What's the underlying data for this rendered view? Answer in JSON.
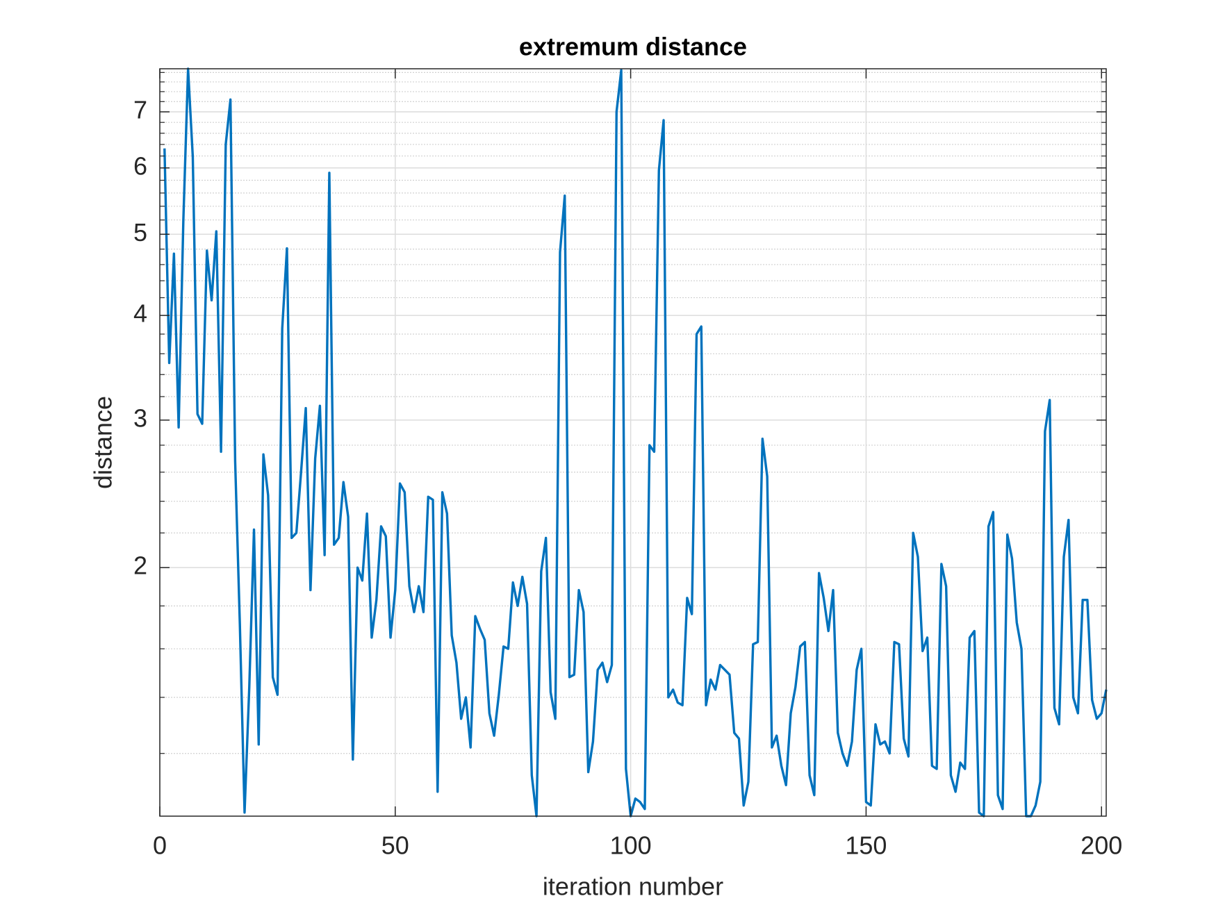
{
  "chart_data": {
    "type": "line",
    "title": "extremum distance",
    "x_label": "iteration number",
    "y_label": "distance",
    "yscale": "log",
    "grid": true,
    "minor_grid": true,
    "xlim": [
      0,
      201
    ],
    "xticks": [
      0,
      50,
      100,
      150,
      200
    ],
    "ylim": [
      1.01,
      7.88
    ],
    "yticks": [
      2,
      3,
      4,
      5,
      6,
      7
    ],
    "minor_yticks": [
      1.2,
      1.4,
      1.6,
      1.8,
      2.2,
      2.4,
      2.6,
      2.8,
      3.2,
      3.4,
      3.6,
      3.8,
      4.2,
      4.4,
      4.6,
      4.8,
      5.2,
      5.4,
      5.6,
      5.8,
      6.2,
      6.4,
      6.6,
      6.8,
      7.2,
      7.4,
      7.6,
      7.8
    ],
    "x": [
      1,
      2,
      3,
      4,
      5,
      6,
      7,
      8,
      9,
      10,
      11,
      12,
      13,
      14,
      15,
      16,
      17,
      18,
      19,
      20,
      21,
      22,
      23,
      24,
      25,
      26,
      27,
      28,
      29,
      30,
      31,
      32,
      33,
      34,
      35,
      36,
      37,
      38,
      39,
      40,
      41,
      42,
      43,
      44,
      45,
      46,
      47,
      48,
      49,
      50,
      51,
      52,
      53,
      54,
      55,
      56,
      57,
      58,
      59,
      60,
      61,
      62,
      63,
      64,
      65,
      66,
      67,
      68,
      69,
      70,
      71,
      72,
      73,
      74,
      75,
      76,
      77,
      78,
      79,
      80,
      81,
      82,
      83,
      84,
      85,
      86,
      87,
      88,
      89,
      90,
      91,
      92,
      93,
      94,
      95,
      96,
      97,
      98,
      99,
      100,
      101,
      102,
      103,
      104,
      105,
      106,
      107,
      108,
      109,
      110,
      111,
      112,
      113,
      114,
      115,
      116,
      117,
      118,
      119,
      120,
      121,
      122,
      123,
      124,
      125,
      126,
      127,
      128,
      129,
      130,
      131,
      132,
      133,
      134,
      135,
      136,
      137,
      138,
      139,
      140,
      141,
      142,
      143,
      144,
      145,
      146,
      147,
      148,
      149,
      150,
      151,
      152,
      153,
      154,
      155,
      156,
      157,
      158,
      159,
      160,
      161,
      162,
      163,
      164,
      165,
      166,
      167,
      168,
      169,
      170,
      171,
      172,
      173,
      174,
      175,
      176,
      177,
      178,
      179,
      180,
      181,
      182,
      183,
      184,
      185,
      186,
      187,
      188,
      189,
      190,
      191,
      192,
      193,
      194,
      195,
      196,
      197,
      198,
      199,
      200,
      201
    ],
    "series": [
      {
        "name": "distance",
        "color": "#0072bd",
        "values": [
          6.33,
          3.51,
          4.74,
          2.94,
          5.2,
          7.88,
          6.19,
          3.05,
          2.97,
          4.78,
          4.17,
          5.04,
          2.75,
          6.4,
          7.24,
          2.68,
          1.71,
          1.02,
          1.44,
          2.22,
          1.23,
          2.73,
          2.44,
          1.48,
          1.41,
          3.86,
          4.81,
          2.17,
          2.2,
          2.6,
          3.1,
          1.88,
          2.7,
          3.12,
          2.07,
          5.92,
          2.13,
          2.17,
          2.53,
          2.3,
          1.18,
          2.0,
          1.93,
          2.32,
          1.65,
          1.83,
          2.24,
          2.18,
          1.65,
          1.88,
          2.52,
          2.46,
          1.9,
          1.77,
          1.9,
          1.77,
          2.43,
          2.41,
          1.08,
          2.46,
          2.32,
          1.66,
          1.54,
          1.32,
          1.4,
          1.22,
          1.75,
          1.69,
          1.64,
          1.34,
          1.26,
          1.41,
          1.61,
          1.6,
          1.92,
          1.8,
          1.95,
          1.81,
          1.13,
          1.01,
          1.98,
          2.17,
          1.42,
          1.32,
          4.76,
          5.56,
          1.48,
          1.49,
          1.88,
          1.77,
          1.14,
          1.24,
          1.51,
          1.54,
          1.46,
          1.53,
          7.0,
          7.85,
          1.15,
          1.01,
          1.06,
          1.05,
          1.03,
          2.8,
          2.75,
          5.96,
          6.84,
          1.4,
          1.43,
          1.38,
          1.37,
          1.84,
          1.76,
          3.8,
          3.88,
          1.37,
          1.47,
          1.43,
          1.53,
          1.51,
          1.49,
          1.27,
          1.25,
          1.04,
          1.11,
          1.62,
          1.63,
          2.85,
          2.57,
          1.22,
          1.26,
          1.16,
          1.1,
          1.34,
          1.44,
          1.61,
          1.63,
          1.13,
          1.07,
          1.97,
          1.84,
          1.68,
          1.88,
          1.27,
          1.2,
          1.16,
          1.24,
          1.51,
          1.6,
          1.05,
          1.04,
          1.3,
          1.23,
          1.24,
          1.2,
          1.63,
          1.62,
          1.25,
          1.19,
          2.2,
          2.06,
          1.59,
          1.65,
          1.16,
          1.15,
          2.02,
          1.9,
          1.13,
          1.08,
          1.17,
          1.15,
          1.65,
          1.68,
          1.02,
          1.01,
          2.24,
          2.33,
          1.07,
          1.03,
          2.19,
          2.05,
          1.72,
          1.6,
          1.01,
          1.01,
          1.04,
          1.11,
          2.91,
          3.17,
          1.36,
          1.3,
          2.06,
          2.28,
          1.4,
          1.34,
          1.83,
          1.83,
          1.39,
          1.32,
          1.34,
          1.43
        ]
      }
    ]
  }
}
